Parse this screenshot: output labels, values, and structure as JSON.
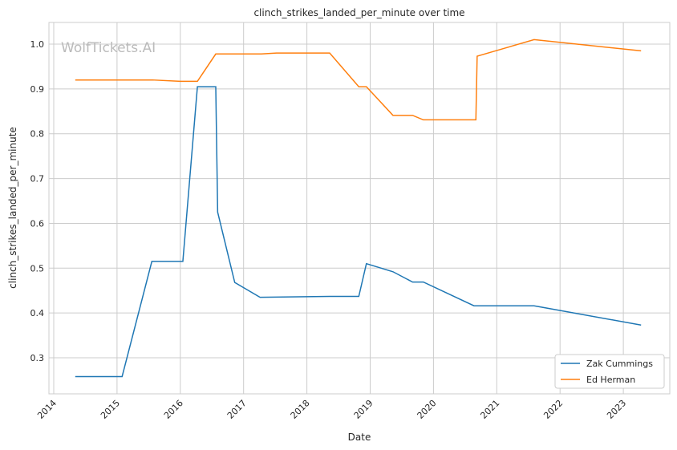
{
  "chart_data": {
    "type": "line",
    "title": "clinch_strikes_landed_per_minute over time",
    "xlabel": "Date",
    "ylabel": "clinch_strikes_landed_per_minute",
    "watermark": "WolfTickets.AI",
    "xlim": [
      2013.92,
      2023.6
    ],
    "ylim": [
      0.22,
      1.05
    ],
    "xticks": [
      "2014",
      "2015",
      "2016",
      "2017",
      "2018",
      "2019",
      "2020",
      "2021",
      "2022",
      "2023"
    ],
    "yticks": [
      "0.3",
      "0.4",
      "0.5",
      "0.6",
      "0.7",
      "0.8",
      "0.9",
      "1.0"
    ],
    "grid": true,
    "legend_position": "bottom-right",
    "series": [
      {
        "name": "Zak Cummings",
        "color": "#1f77b4",
        "x": [
          2014.34,
          2015.08,
          2015.55,
          2016.04,
          2016.27,
          2016.56,
          2016.59,
          2016.86,
          2017.26,
          2018.36,
          2018.82,
          2018.94,
          2019.36,
          2019.67,
          2019.84,
          2020.64,
          2021.59,
          2023.28
        ],
        "y": [
          0.258,
          0.258,
          0.515,
          0.515,
          0.905,
          0.905,
          0.625,
          0.468,
          0.435,
          0.437,
          0.437,
          0.51,
          0.492,
          0.469,
          0.469,
          0.416,
          0.416,
          0.373
        ]
      },
      {
        "name": "Ed Herman",
        "color": "#ff7f0e",
        "x": [
          2014.34,
          2015.56,
          2016.0,
          2016.27,
          2016.56,
          2017.28,
          2017.52,
          2018.36,
          2018.82,
          2018.94,
          2019.36,
          2019.67,
          2019.84,
          2020.67,
          2020.69,
          2021.59,
          2023.28
        ],
        "y": [
          0.92,
          0.92,
          0.917,
          0.917,
          0.978,
          0.978,
          0.98,
          0.98,
          0.905,
          0.905,
          0.841,
          0.841,
          0.831,
          0.831,
          0.973,
          1.01,
          0.985
        ]
      }
    ]
  }
}
